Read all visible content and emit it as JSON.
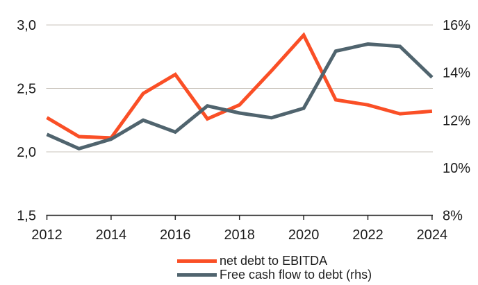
{
  "chart_data": {
    "type": "line",
    "title": "",
    "x": [
      2012,
      2013,
      2014,
      2015,
      2016,
      2017,
      2018,
      2019,
      2020,
      2021,
      2022,
      2023,
      2024
    ],
    "series": [
      {
        "name": "net debt to EBITDA",
        "axis": "left",
        "color": "#FA4F26",
        "values": [
          2.27,
          2.12,
          2.11,
          2.46,
          2.61,
          2.26,
          2.37,
          2.64,
          2.92,
          2.41,
          2.37,
          2.3,
          2.32
        ]
      },
      {
        "name": "Free cash flow to debt (rhs)",
        "axis": "right",
        "color": "#50646E",
        "values": [
          11.4,
          10.8,
          11.2,
          12.0,
          11.5,
          12.6,
          12.3,
          12.1,
          12.5,
          14.9,
          15.2,
          15.1,
          13.8
        ]
      }
    ],
    "left_axis": {
      "min": 1.5,
      "max": 3.0,
      "tick_values": [
        3.0,
        2.5,
        2.0,
        1.5
      ],
      "tick_labels": [
        "3,0",
        "2,5",
        "2,0",
        "1,5"
      ],
      "gridline_values": [
        3.0,
        2.5,
        2.0
      ]
    },
    "right_axis": {
      "min": 8,
      "max": 16,
      "tick_values": [
        16,
        14,
        12,
        10,
        8
      ],
      "tick_labels": [
        "16%",
        "14%",
        "12%",
        "10%",
        "8%"
      ]
    },
    "x_axis": {
      "tick_years": [
        2012,
        2014,
        2016,
        2018,
        2020,
        2022,
        2024
      ],
      "tick_labels": [
        "2012",
        "2014",
        "2016",
        "2018",
        "2020",
        "2022",
        "2024"
      ]
    },
    "grid": "horizontal",
    "legend_position": "bottom"
  },
  "legend": {
    "items": [
      {
        "label": "net debt to EBITDA",
        "color": "#FA4F26"
      },
      {
        "label": "Free cash flow to debt (rhs)",
        "color": "#50646E"
      }
    ]
  },
  "colors": {
    "orange": "#FA4F26",
    "slate": "#50646E",
    "gridline": "#C9C3BB",
    "axis": "#262626",
    "text": "#1C1C1C",
    "background": "#FFFFFF"
  }
}
